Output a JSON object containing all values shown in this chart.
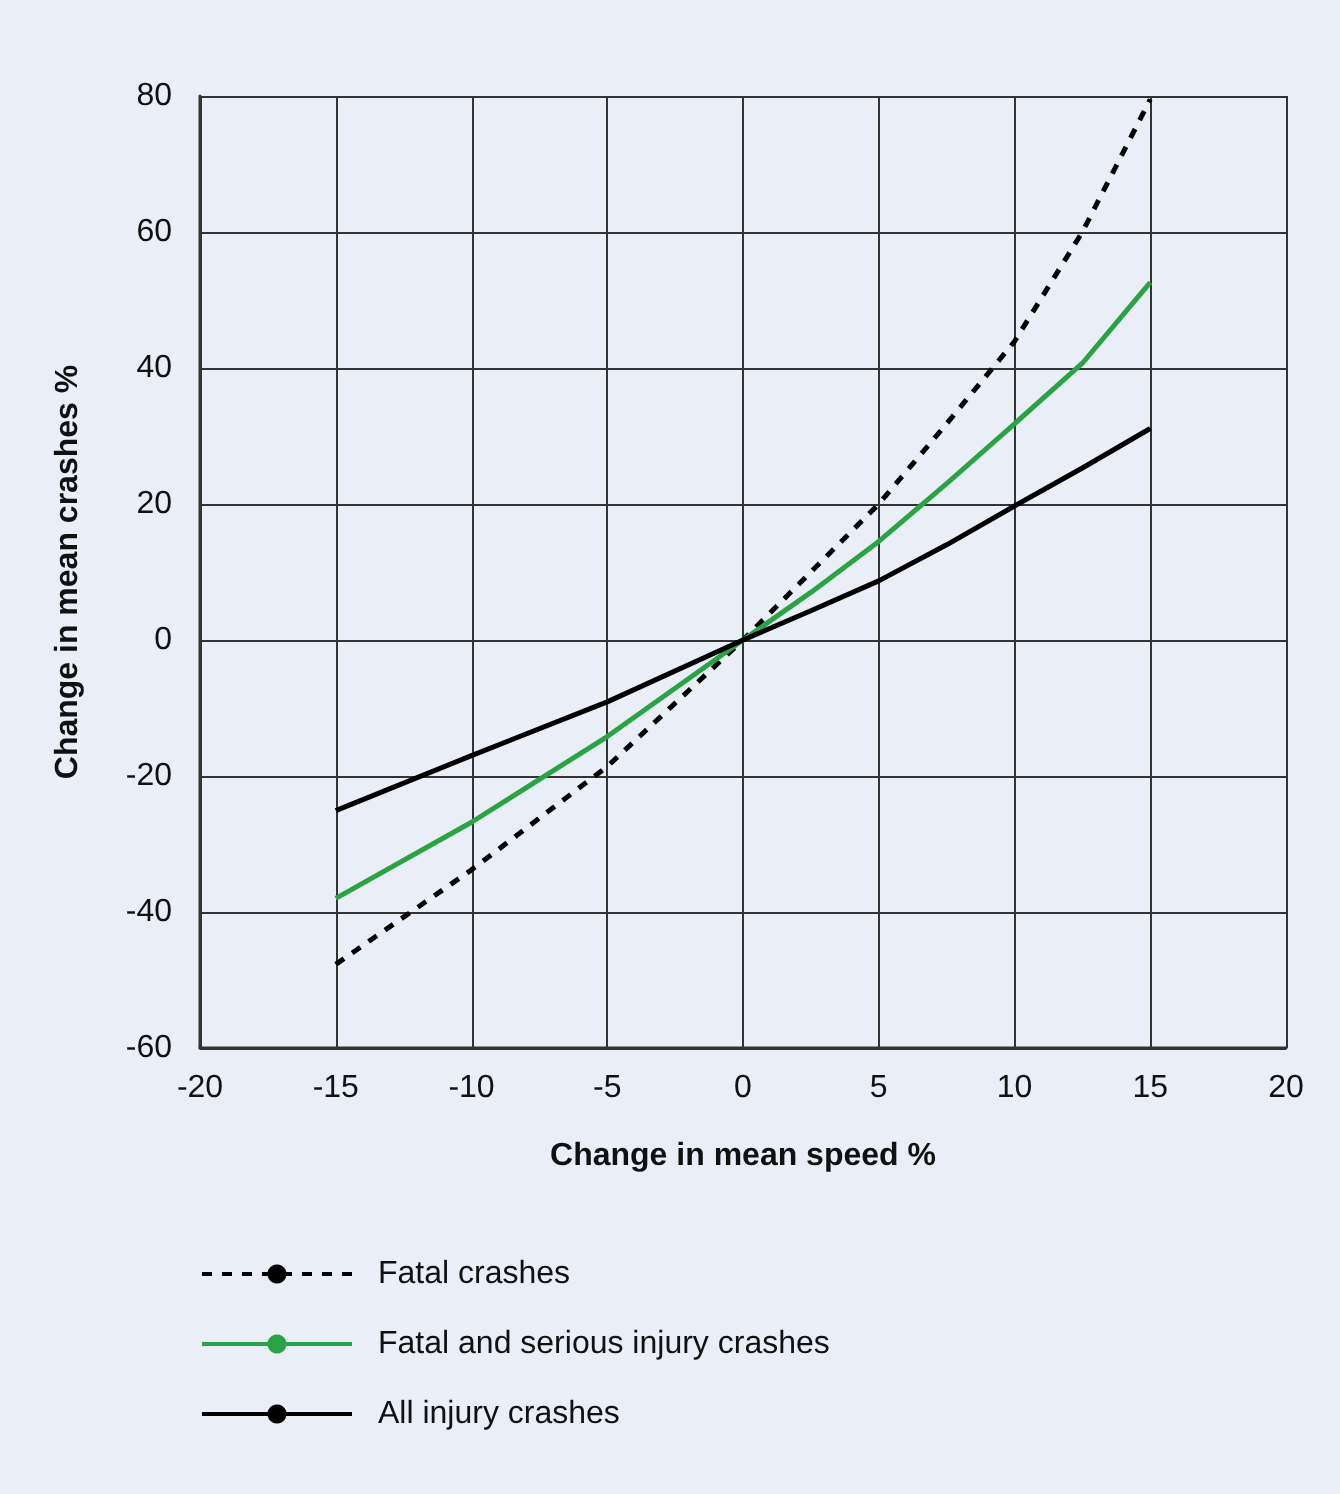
{
  "chart_data": {
    "type": "line",
    "xlabel": "Change in mean speed %",
    "ylabel": "Change in mean crashes %",
    "x": [
      -15,
      -10,
      -5,
      0,
      2.5,
      5,
      7.5,
      10,
      12.5,
      15
    ],
    "series": [
      {
        "name": "Fatal crashes",
        "color": "#000000",
        "line_style": "dashed",
        "values": [
          -47.7,
          -33.8,
          -18.6,
          0,
          10,
          20,
          31.8,
          43.9,
          60,
          79.5
        ]
      },
      {
        "name": "Fatal and serious injury crashes",
        "color": "#2aa345",
        "line_style": "solid",
        "values": [
          -38,
          -26.8,
          -14.2,
          0,
          7,
          14.5,
          23,
          31.8,
          40.7,
          52.6
        ]
      },
      {
        "name": "All injury crashes",
        "color": "#000000",
        "line_style": "solid",
        "values": [
          -25.1,
          -17,
          -9.1,
          0,
          4.3,
          8.7,
          14,
          19.7,
          25.3,
          31.1
        ]
      }
    ],
    "xlim": [
      -20,
      20
    ],
    "xticks": [
      -20,
      -15,
      -10,
      -5,
      0,
      5,
      10,
      15,
      20
    ],
    "ylim": [
      -60,
      80
    ],
    "yticks": [
      -60,
      -40,
      -20,
      0,
      20,
      40,
      60,
      80
    ],
    "grid": true,
    "legend": "bottom",
    "marker": "none"
  }
}
